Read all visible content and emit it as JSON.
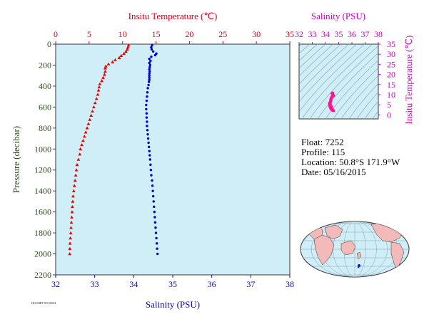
{
  "chart_data": [
    {
      "type": "scatter",
      "top_axis": {
        "label": "Insitu Temperature (℃)",
        "range": [
          0,
          35
        ],
        "ticks": [
          "0",
          "5",
          "10",
          "15",
          "20",
          "25",
          "30",
          "35"
        ]
      },
      "bottom_axis": {
        "label": "Salinity (PSU)",
        "range": [
          32,
          38
        ],
        "ticks": [
          "32",
          "33",
          "34",
          "35",
          "36",
          "37",
          "38"
        ]
      },
      "y_axis": {
        "label": "Pressure (decibar)",
        "range": [
          2200,
          0
        ],
        "ticks": [
          "0",
          "200",
          "400",
          "600",
          "800",
          "1000",
          "1200",
          "1400",
          "1600",
          "1800",
          "2000",
          "2200"
        ]
      },
      "colors": {
        "temperature": "#ee0000",
        "salinity": "#0000cc",
        "background": "#cfeef8"
      },
      "series": [
        {
          "marker": "triangle",
          "x_axis": "top",
          "points": [
            [
              10.9,
              10
            ],
            [
              10.8,
              30
            ],
            [
              10.7,
              50
            ],
            [
              10.5,
              70
            ],
            [
              10.2,
              90
            ],
            [
              9.8,
              110
            ],
            [
              9.5,
              130
            ],
            [
              8.9,
              150
            ],
            [
              8.5,
              170
            ],
            [
              7.9,
              190
            ],
            [
              7.5,
              210
            ],
            [
              7.4,
              230
            ],
            [
              7.4,
              260
            ],
            [
              7.3,
              290
            ],
            [
              7.1,
              320
            ],
            [
              6.9,
              350
            ],
            [
              6.6,
              380
            ],
            [
              6.5,
              410
            ],
            [
              6.4,
              440
            ],
            [
              6.3,
              480
            ],
            [
              6.1,
              520
            ],
            [
              5.9,
              560
            ],
            [
              5.7,
              600
            ],
            [
              5.5,
              640
            ],
            [
              5.3,
              680
            ],
            [
              5.1,
              720
            ],
            [
              4.9,
              760
            ],
            [
              4.7,
              800
            ],
            [
              4.5,
              840
            ],
            [
              4.3,
              880
            ],
            [
              4.1,
              920
            ],
            [
              3.9,
              960
            ],
            [
              3.7,
              1000
            ],
            [
              3.6,
              1050
            ],
            [
              3.4,
              1100
            ],
            [
              3.2,
              1150
            ],
            [
              3.1,
              1200
            ],
            [
              3.0,
              1250
            ],
            [
              2.9,
              1300
            ],
            [
              2.8,
              1350
            ],
            [
              2.7,
              1400
            ],
            [
              2.6,
              1450
            ],
            [
              2.55,
              1500
            ],
            [
              2.5,
              1550
            ],
            [
              2.45,
              1600
            ],
            [
              2.4,
              1650
            ],
            [
              2.35,
              1700
            ],
            [
              2.3,
              1750
            ],
            [
              2.25,
              1800
            ],
            [
              2.2,
              1850
            ],
            [
              2.15,
              1900
            ],
            [
              2.12,
              1950
            ],
            [
              2.1,
              2000
            ]
          ]
        },
        {
          "marker": "circle",
          "x_axis": "bottom",
          "points": [
            [
              34.47,
              10
            ],
            [
              34.45,
              30
            ],
            [
              34.46,
              50
            ],
            [
              34.5,
              70
            ],
            [
              34.58,
              90
            ],
            [
              34.55,
              105
            ],
            [
              34.45,
              120
            ],
            [
              34.4,
              140
            ],
            [
              34.43,
              160
            ],
            [
              34.4,
              180
            ],
            [
              34.42,
              200
            ],
            [
              34.41,
              220
            ],
            [
              34.4,
              240
            ],
            [
              34.41,
              260
            ],
            [
              34.4,
              280
            ],
            [
              34.4,
              300
            ],
            [
              34.4,
              320
            ],
            [
              34.4,
              340
            ],
            [
              34.39,
              360
            ],
            [
              34.38,
              390
            ],
            [
              34.36,
              420
            ],
            [
              34.35,
              460
            ],
            [
              34.34,
              500
            ],
            [
              34.33,
              540
            ],
            [
              34.32,
              580
            ],
            [
              34.32,
              620
            ],
            [
              34.33,
              660
            ],
            [
              34.33,
              700
            ],
            [
              34.34,
              740
            ],
            [
              34.34,
              780
            ],
            [
              34.35,
              820
            ],
            [
              34.36,
              860
            ],
            [
              34.37,
              900
            ],
            [
              34.38,
              940
            ],
            [
              34.39,
              980
            ],
            [
              34.4,
              1020
            ],
            [
              34.41,
              1060
            ],
            [
              34.42,
              1100
            ],
            [
              34.43,
              1150
            ],
            [
              34.44,
              1200
            ],
            [
              34.45,
              1250
            ],
            [
              34.47,
              1300
            ],
            [
              34.48,
              1350
            ],
            [
              34.49,
              1400
            ],
            [
              34.5,
              1450
            ],
            [
              34.51,
              1500
            ],
            [
              34.52,
              1550
            ],
            [
              34.53,
              1600
            ],
            [
              34.54,
              1650
            ],
            [
              34.55,
              1700
            ],
            [
              34.56,
              1750
            ],
            [
              34.57,
              1800
            ],
            [
              34.58,
              1850
            ],
            [
              34.59,
              1900
            ],
            [
              34.6,
              1950
            ],
            [
              34.61,
              2000
            ]
          ]
        }
      ]
    },
    {
      "type": "scatter",
      "top_axis": {
        "label": "Salinity (PSU)",
        "range": [
          32,
          38
        ],
        "ticks": [
          "32",
          "33",
          "34",
          "35",
          "36",
          "37",
          "38"
        ]
      },
      "right_axis": {
        "label": "Insitu Temperature (℃)",
        "range": [
          -2,
          35
        ],
        "ticks": [
          "0",
          "5",
          "10",
          "15",
          "20",
          "25",
          "30",
          "35"
        ]
      },
      "colors": {
        "points": "#ff1493",
        "contours": "#8a9aa6",
        "background": "#cfeef8"
      },
      "points": [
        [
          34.55,
          10.8
        ],
        [
          34.5,
          10.5
        ],
        [
          34.55,
          10.0
        ],
        [
          34.6,
          9.5
        ],
        [
          34.5,
          9.0
        ],
        [
          34.45,
          8.5
        ],
        [
          34.42,
          8.0
        ],
        [
          34.4,
          7.5
        ],
        [
          34.4,
          7.0
        ],
        [
          34.38,
          6.5
        ],
        [
          34.35,
          6.0
        ],
        [
          34.33,
          5.5
        ],
        [
          34.32,
          5.0
        ],
        [
          34.33,
          4.5
        ],
        [
          34.35,
          4.0
        ],
        [
          34.38,
          3.5
        ],
        [
          34.42,
          3.0
        ],
        [
          34.47,
          2.6
        ],
        [
          34.52,
          2.3
        ],
        [
          34.57,
          2.15
        ],
        [
          34.61,
          2.1
        ],
        [
          34.3,
          5.8
        ],
        [
          34.36,
          5.2
        ],
        [
          34.44,
          4.2
        ],
        [
          34.5,
          3.2
        ]
      ]
    }
  ],
  "info": {
    "float": "Float:  7252",
    "profile": "Profile:  115",
    "location": "Location:  50.8°S  171.9°W",
    "date": "Date:  05/16/2015"
  },
  "map": {
    "marker_color": "#1515cc",
    "land_color": "#f4b9b9",
    "ocean_color": "#cfeef8"
  },
  "footer": "HOLMRT NO.00024"
}
